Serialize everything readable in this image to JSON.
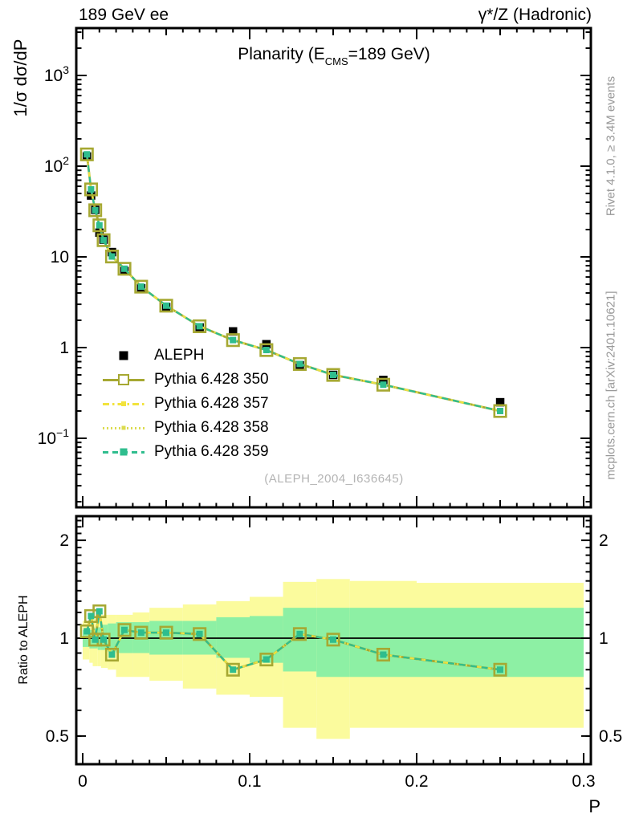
{
  "header": {
    "left_label": "189 GeV ee",
    "right_label": "γ*/Z (Hadronic)"
  },
  "side_notes": {
    "rivet": "Rivet 4.1.0, ≥ 3.4M events",
    "mcplots": "mcplots.cern.ch [arXiv:2401.10621]"
  },
  "main_panel": {
    "title_prefix": "Planarity (E",
    "title_subscript": "CMS",
    "title_suffix": "=189 GeV)",
    "ylabel": "1/σ  dσ/dP",
    "watermark": "(ALEPH_2004_I636645)"
  },
  "ratio_panel": {
    "ylabel": "Ratio to ALEPH"
  },
  "x_axis": {
    "label": "P"
  },
  "legend": {
    "entries": [
      {
        "label": "ALEPH"
      },
      {
        "label": "Pythia 6.428 350"
      },
      {
        "label": "Pythia 6.428 357"
      },
      {
        "label": "Pythia 6.428 358"
      },
      {
        "label": "Pythia 6.428 359"
      }
    ]
  },
  "colors": {
    "aleph": "#000000",
    "pythia_350": "#a6a832",
    "pythia_357": "#f2e33c",
    "pythia_358": "#dcdc50",
    "pythia_359": "#2fbd8e",
    "band_yellow": "#fbfb9d",
    "band_green": "#8df0a4",
    "side_text": "#999999",
    "watermark": "#b4b4b4"
  },
  "chart_data": {
    "type": "line",
    "title": "Planarity (E_CMS=189 GeV)",
    "xlabel": "P",
    "ylabel": "1/σ dσ/dP",
    "x_scale": "linear",
    "y_scale": "log",
    "xlim": [
      0,
      0.3
    ],
    "ylim": [
      0.018,
      3300
    ],
    "x_major_ticks": [
      0,
      0.1,
      0.2,
      0.3
    ],
    "y_major_ticks": [
      0.1,
      1,
      10,
      100,
      1000
    ],
    "grid": false,
    "legend_position": "left-middle",
    "x": [
      0.0025,
      0.005,
      0.0075,
      0.01,
      0.0125,
      0.0175,
      0.025,
      0.035,
      0.05,
      0.07,
      0.09,
      0.11,
      0.13,
      0.15,
      0.18,
      0.25
    ],
    "series": [
      {
        "name": "ALEPH",
        "role": "data",
        "values": [
          128,
          47.5,
          33,
          18.5,
          15.5,
          11.3,
          7.0,
          4.5,
          2.8,
          1.67,
          1.51,
          1.09,
          0.64,
          0.5,
          0.44,
          0.25
        ]
      },
      {
        "name": "Pythia 6.428 350",
        "role": "mc",
        "values": [
          135,
          55.5,
          32.7,
          22.3,
          15.3,
          10.1,
          7.4,
          4.7,
          2.9,
          1.72,
          1.21,
          0.94,
          0.66,
          0.5,
          0.39,
          0.2
        ]
      },
      {
        "name": "Pythia 6.428 357",
        "role": "mc",
        "values": [
          135,
          55.5,
          32.7,
          22.3,
          15.3,
          10.1,
          7.4,
          4.7,
          2.9,
          1.72,
          1.21,
          0.94,
          0.66,
          0.5,
          0.39,
          0.2
        ]
      },
      {
        "name": "Pythia 6.428 358",
        "role": "mc",
        "values": [
          135,
          55.5,
          32.7,
          22.3,
          15.3,
          10.1,
          7.4,
          4.7,
          2.9,
          1.72,
          1.21,
          0.94,
          0.66,
          0.5,
          0.39,
          0.2
        ]
      },
      {
        "name": "Pythia 6.428 359",
        "role": "mc",
        "values": [
          135,
          55.5,
          32.7,
          22.3,
          15.3,
          10.1,
          7.4,
          4.7,
          2.9,
          1.72,
          1.21,
          0.94,
          0.66,
          0.5,
          0.39,
          0.2
        ]
      }
    ],
    "ratio_panel": {
      "ylabel": "Ratio to ALEPH",
      "y_scale": "log",
      "ylim": [
        0.41,
        2.37
      ],
      "y_major_ticks": [
        0.5,
        1,
        2
      ],
      "ratio_values": [
        1.05,
        1.17,
        0.99,
        1.21,
        0.99,
        0.89,
        1.06,
        1.04,
        1.04,
        1.03,
        0.8,
        0.86,
        1.03,
        0.99,
        0.89,
        0.8
      ],
      "bands": {
        "bin_edges": [
          0,
          0.004,
          0.006,
          0.009,
          0.011,
          0.015,
          0.02,
          0.03,
          0.04,
          0.06,
          0.08,
          0.1,
          0.12,
          0.14,
          0.16,
          0.2,
          0.3
        ],
        "yellow_lo_hi": [
          [
            0.86,
            1.13
          ],
          [
            0.84,
            1.15
          ],
          [
            0.82,
            1.15
          ],
          [
            0.82,
            1.16
          ],
          [
            0.81,
            1.18
          ],
          [
            0.8,
            1.18
          ],
          [
            0.76,
            1.18
          ],
          [
            0.76,
            1.2
          ],
          [
            0.74,
            1.24
          ],
          [
            0.7,
            1.27
          ],
          [
            0.67,
            1.3
          ],
          [
            0.66,
            1.34
          ],
          [
            0.53,
            1.49
          ],
          [
            0.49,
            1.52
          ],
          [
            0.53,
            1.5
          ],
          [
            0.53,
            1.48
          ]
        ],
        "green_lo_hi": [
          [
            0.94,
            1.06
          ],
          [
            0.93,
            1.06
          ],
          [
            0.93,
            1.07
          ],
          [
            0.92,
            1.08
          ],
          [
            0.92,
            1.1
          ],
          [
            0.91,
            1.11
          ],
          [
            0.9,
            1.12
          ],
          [
            0.9,
            1.12
          ],
          [
            0.89,
            1.13
          ],
          [
            0.89,
            1.13
          ],
          [
            0.87,
            1.16
          ],
          [
            0.84,
            1.17
          ],
          [
            0.79,
            1.24
          ],
          [
            0.76,
            1.24
          ],
          [
            0.76,
            1.24
          ],
          [
            0.76,
            1.24
          ]
        ]
      }
    }
  }
}
